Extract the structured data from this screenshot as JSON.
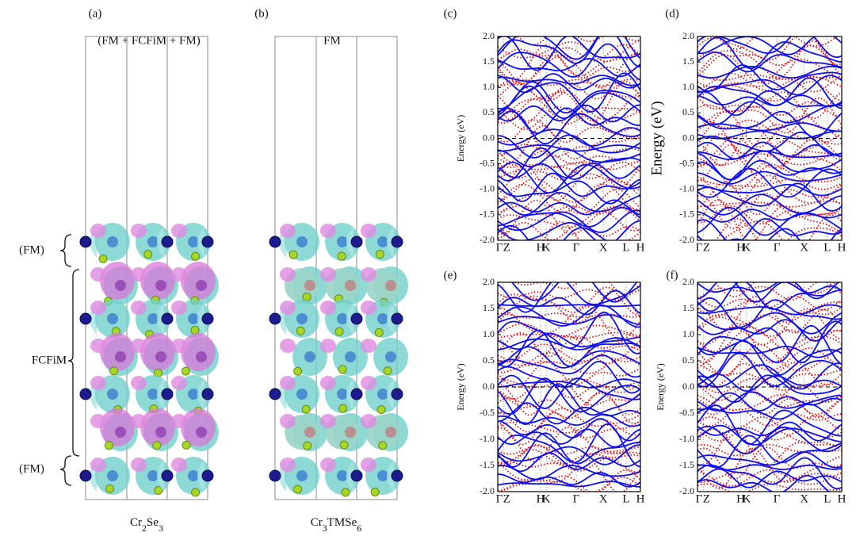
{
  "structures": [
    {
      "label": "(a)",
      "title": "(FM + FCFiM + FM)",
      "formula": [
        "Cr",
        "2",
        "Se",
        "3"
      ],
      "layers": [
        "(FM)",
        "FCFiM",
        "(FM)"
      ]
    },
    {
      "label": "(b)",
      "title": "FM",
      "formula": [
        "Cr",
        "3",
        "TMSe",
        "6"
      ]
    }
  ],
  "bands": [
    {
      "label": "(c)",
      "ylabel": "Energy (eV)"
    },
    {
      "label": "(d)",
      "ylabel": "Energy (eV)"
    },
    {
      "label": "(e)",
      "ylabel": "Energy (eV)"
    },
    {
      "label": "(f)",
      "ylabel": "Energy (eV)"
    }
  ],
  "ylim": [
    -2,
    2
  ],
  "yticks": [
    {
      "value": -2,
      "label": "-2.0"
    },
    {
      "value": -1.5,
      "label": "-1.5"
    },
    {
      "value": -1,
      "label": "-1.0"
    },
    {
      "value": -0.5,
      "label": "-0.5"
    },
    {
      "value": 0,
      "label": "0.0"
    },
    {
      "value": 0.5,
      "label": "0.5"
    },
    {
      "value": 1,
      "label": "1.0"
    },
    {
      "value": 1.5,
      "label": "1.5"
    },
    {
      "value": 2,
      "label": "2.0"
    }
  ],
  "xlim": [
    0,
    1
  ],
  "xticks": [
    {
      "value": 0,
      "label": "Γ"
    },
    {
      "value": 0.04,
      "label": "Z"
    },
    {
      "value": 0.3,
      "label": "H"
    },
    {
      "value": 0.34,
      "label": "K"
    },
    {
      "value": 0.55,
      "label": "Γ"
    },
    {
      "value": 0.74,
      "label": "X"
    },
    {
      "value": 0.9,
      "label": "L"
    },
    {
      "value": 1,
      "label": "H"
    }
  ],
  "fermi_level": 0
}
